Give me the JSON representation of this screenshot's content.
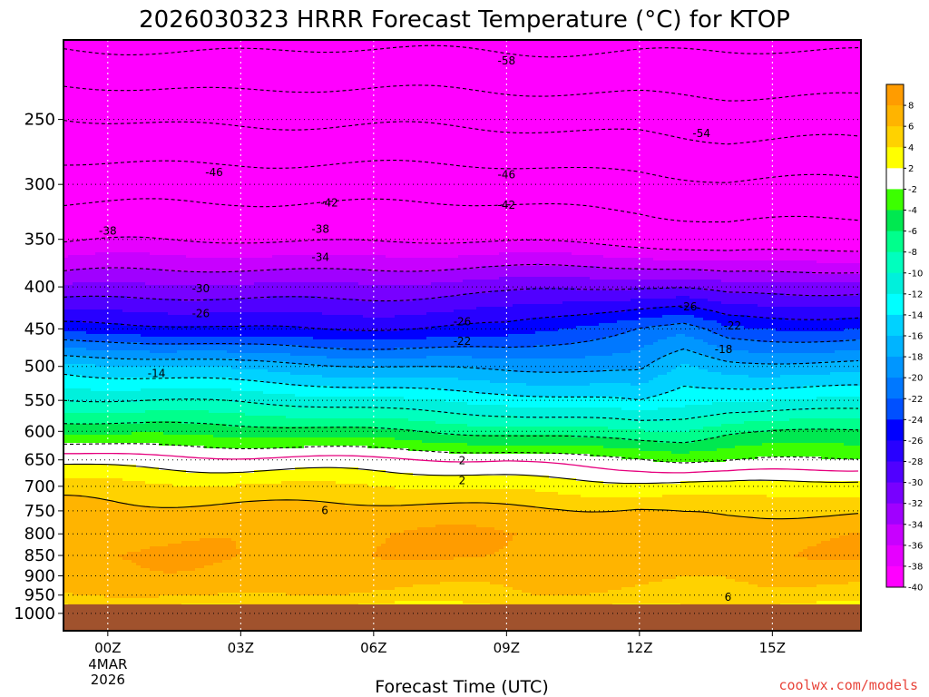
{
  "chart_data": {
    "type": "heatmap",
    "title": "2026030323 HRRR Forecast Temperature (°C) for KTOP",
    "xlabel": "Forecast Time (UTC)",
    "ylabel": "",
    "credit": "coolwx.com/models",
    "x_range_hours": [
      -1,
      17
    ],
    "y_range_hPa": [
      200,
      1050
    ],
    "y_ticks": [
      250,
      300,
      350,
      400,
      450,
      500,
      550,
      600,
      650,
      700,
      750,
      800,
      850,
      900,
      950,
      1000
    ],
    "x_ticks": [
      {
        "hour": 0,
        "label": "00Z",
        "date_line1": "4MAR",
        "date_line2": "2026"
      },
      {
        "hour": 3,
        "label": "03Z"
      },
      {
        "hour": 6,
        "label": "06Z"
      },
      {
        "hour": 9,
        "label": "09Z"
      },
      {
        "hour": 12,
        "label": "12Z"
      },
      {
        "hour": 15,
        "label": "15Z"
      }
    ],
    "colorbar": {
      "labels": [
        8,
        6,
        4,
        2,
        -2,
        -4,
        -6,
        -8,
        -10,
        -12,
        -14,
        -16,
        -18,
        -20,
        -22,
        -24,
        -26,
        -28,
        -30,
        -32,
        -34,
        -36,
        -38,
        -40
      ],
      "bins": [
        {
          "lo": 8,
          "hi": 10,
          "color": "#ff9c00"
        },
        {
          "lo": 6,
          "hi": 8,
          "color": "#ffb400"
        },
        {
          "lo": 4,
          "hi": 6,
          "color": "#ffd200"
        },
        {
          "lo": 2,
          "hi": 4,
          "color": "#ffff00"
        },
        {
          "lo": -2,
          "hi": 2,
          "color": "#ffffff"
        },
        {
          "lo": -4,
          "hi": -2,
          "color": "#3cff00"
        },
        {
          "lo": -6,
          "hi": -4,
          "color": "#00e850"
        },
        {
          "lo": -8,
          "hi": -6,
          "color": "#00ff8c"
        },
        {
          "lo": -10,
          "hi": -8,
          "color": "#00ffbe"
        },
        {
          "lo": -12,
          "hi": -10,
          "color": "#00f0dc"
        },
        {
          "lo": -14,
          "hi": -12,
          "color": "#00ffff"
        },
        {
          "lo": -16,
          "hi": -14,
          "color": "#00d2ff"
        },
        {
          "lo": -18,
          "hi": -16,
          "color": "#00b4ff"
        },
        {
          "lo": -20,
          "hi": -18,
          "color": "#0096ff"
        },
        {
          "lo": -22,
          "hi": -20,
          "color": "#0078ff"
        },
        {
          "lo": -24,
          "hi": -22,
          "color": "#0050ff"
        },
        {
          "lo": -26,
          "hi": -24,
          "color": "#0000ff"
        },
        {
          "lo": -28,
          "hi": -26,
          "color": "#2800ff"
        },
        {
          "lo": -30,
          "hi": -28,
          "color": "#5000ff"
        },
        {
          "lo": -32,
          "hi": -30,
          "color": "#7800ff"
        },
        {
          "lo": -34,
          "hi": -32,
          "color": "#a000ff"
        },
        {
          "lo": -36,
          "hi": -34,
          "color": "#c800ff"
        },
        {
          "lo": -38,
          "hi": -36,
          "color": "#e600ff"
        },
        {
          "lo": -40,
          "hi": -38,
          "color": "#ff00ff"
        },
        {
          "lo": -60,
          "hi": -40,
          "color": "#ff00ff"
        }
      ]
    },
    "ground_color": "#a0522d",
    "surface_pressure_hPa": 975,
    "contour_interval_C": 4,
    "freezing_line_color": "#e6007e",
    "profiles": {
      "note": "temperature (C) at pressure levels for a forecast hour; interpolated linearly in between",
      "levels": [
        200,
        250,
        300,
        350,
        400,
        450,
        500,
        550,
        600,
        650,
        700,
        750,
        800,
        850,
        900,
        950,
        975
      ],
      "hours": [
        -1,
        3,
        9,
        12,
        13,
        14,
        17
      ],
      "temps": [
        [
          -59,
          -50,
          -44,
          -38.5,
          -32,
          -25,
          -15,
          -9.5,
          -4,
          1.5,
          5,
          6.5,
          7.5,
          8,
          7,
          6,
          4
        ],
        [
          -59,
          -50.5,
          -43.5,
          -38,
          -31.5,
          -26,
          -17,
          -10.5,
          -5,
          0.5,
          4.5,
          7,
          7.8,
          8,
          7.5,
          6,
          4
        ],
        [
          -59,
          -51,
          -44,
          -38.5,
          -31,
          -25.5,
          -18.5,
          -12.5,
          -6.5,
          0,
          3.5,
          6.5,
          8,
          8,
          6.5,
          5.5,
          4
        ],
        [
          -59,
          -51,
          -44.5,
          -39,
          -30,
          -22,
          -19,
          -14.5,
          -8,
          -1.5,
          3,
          6.5,
          7.7,
          7.5,
          6.5,
          5.5,
          4
        ],
        [
          -59,
          -51.5,
          -45,
          -39.5,
          -30,
          -21,
          -16,
          -13,
          -8,
          -2.5,
          2.8,
          5.8,
          7.5,
          7.5,
          6.5,
          5.5,
          4
        ],
        [
          -59,
          -52,
          -45.5,
          -40,
          -31,
          -23.5,
          -17,
          -12,
          -6.5,
          -2.5,
          2.5,
          5.5,
          7.5,
          8,
          6.5,
          5.5,
          4
        ],
        [
          -59,
          -52,
          -45.5,
          -40,
          -31,
          -24,
          -17,
          -11.5,
          -5.5,
          -1.5,
          3,
          5.5,
          7.5,
          8,
          6.5,
          5.5,
          4
        ]
      ]
    },
    "contour_labels": [
      {
        "text": "-58",
        "hour": 9,
        "p": 212
      },
      {
        "text": "-54",
        "hour": 13.4,
        "p": 260
      },
      {
        "text": "-46",
        "hour": 2.4,
        "p": 290
      },
      {
        "text": "-46",
        "hour": 9,
        "p": 292
      },
      {
        "text": "-42",
        "hour": 5,
        "p": 316
      },
      {
        "text": "-42",
        "hour": 9,
        "p": 318
      },
      {
        "text": "-38",
        "hour": 0,
        "p": 342
      },
      {
        "text": "-38",
        "hour": 4.8,
        "p": 340
      },
      {
        "text": "-34",
        "hour": 4.8,
        "p": 368
      },
      {
        "text": "-30",
        "hour": 2.1,
        "p": 402
      },
      {
        "text": "-26",
        "hour": 2.1,
        "p": 431
      },
      {
        "text": "-26",
        "hour": 8,
        "p": 441
      },
      {
        "text": "-26",
        "hour": 13.1,
        "p": 423
      },
      {
        "text": "-22",
        "hour": 8,
        "p": 466
      },
      {
        "text": "-22",
        "hour": 14.1,
        "p": 446
      },
      {
        "text": "-18",
        "hour": 13.9,
        "p": 477
      },
      {
        "text": "-14",
        "hour": 1.1,
        "p": 510
      },
      {
        "text": "2",
        "hour": 8,
        "p": 651
      },
      {
        "text": "2",
        "hour": 8,
        "p": 689
      },
      {
        "text": "6",
        "hour": 4.9,
        "p": 749
      },
      {
        "text": "6",
        "hour": 14,
        "p": 955
      }
    ]
  }
}
